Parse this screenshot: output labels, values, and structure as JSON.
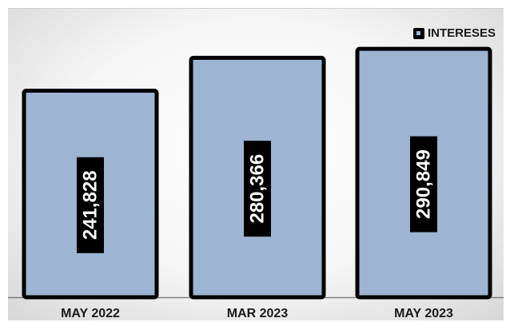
{
  "chart_data": {
    "type": "bar",
    "categories": [
      "MAY 2022",
      "MAR 2023",
      "MAY 2023"
    ],
    "series": [
      {
        "name": "INTERESES",
        "values": [
          241828,
          280366,
          290849
        ]
      }
    ],
    "data_labels": [
      "241,828",
      "280,366",
      "290,849"
    ],
    "ylim": [
      0,
      320000
    ],
    "grid": false,
    "legend_position": "top-right",
    "colors": {
      "bar_fill": "#9db4d3",
      "bar_border": "#000000",
      "label_bg": "#000000",
      "label_text": "#ffffff",
      "axis": "#808080"
    }
  }
}
